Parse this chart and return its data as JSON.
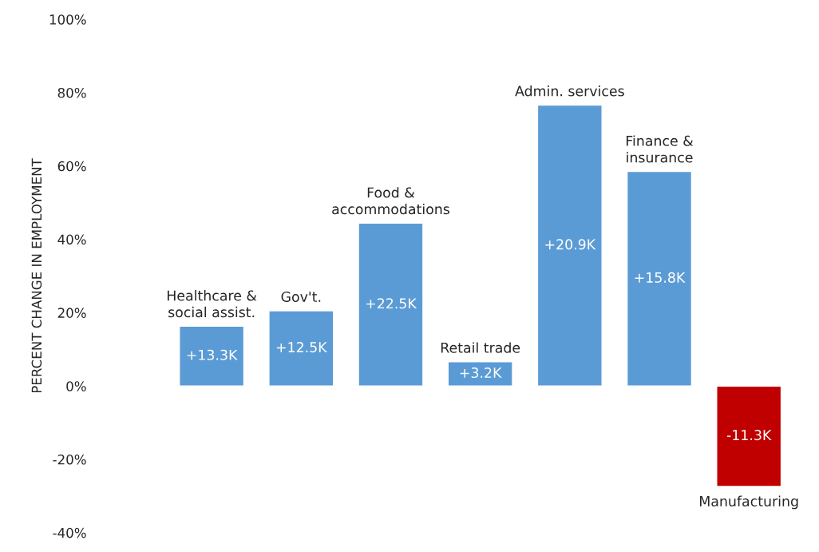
{
  "chart_data": {
    "type": "bar",
    "ylabel": "PERCENT CHANGE IN EMPLOYMENT",
    "categories": [
      "Healthcare &\nsocial assist.",
      "Gov't.",
      "Food &\naccommodations",
      "Retail trade",
      "Admin. services",
      "Finance &\ninsurance",
      "Manufacturing"
    ],
    "values": [
      16.3,
      20.5,
      44.4,
      6.6,
      76.6,
      58.5,
      -27.4
    ],
    "colors": [
      "#5b9bd5",
      "#5b9bd5",
      "#5b9bd5",
      "#5b9bd5",
      "#5b9bd5",
      "#5b9bd5",
      "#c00000"
    ],
    "annotations": [
      "+13.3K",
      "+12.5K",
      "+22.5K",
      "+3.2K",
      "+20.9K",
      "+15.8K",
      "-11.3K"
    ],
    "ylim": [
      -40,
      100
    ],
    "yticks": [
      {
        "value": -40,
        "label": "-40%"
      },
      {
        "value": -20,
        "label": "-20%"
      },
      {
        "value": 0,
        "label": "0%"
      },
      {
        "value": 20,
        "label": "20%"
      },
      {
        "value": 40,
        "label": "40%"
      },
      {
        "value": 60,
        "label": "60%"
      },
      {
        "value": 80,
        "label": "80%"
      },
      {
        "value": 100,
        "label": "100%"
      }
    ],
    "grid": false,
    "legend": false
  }
}
